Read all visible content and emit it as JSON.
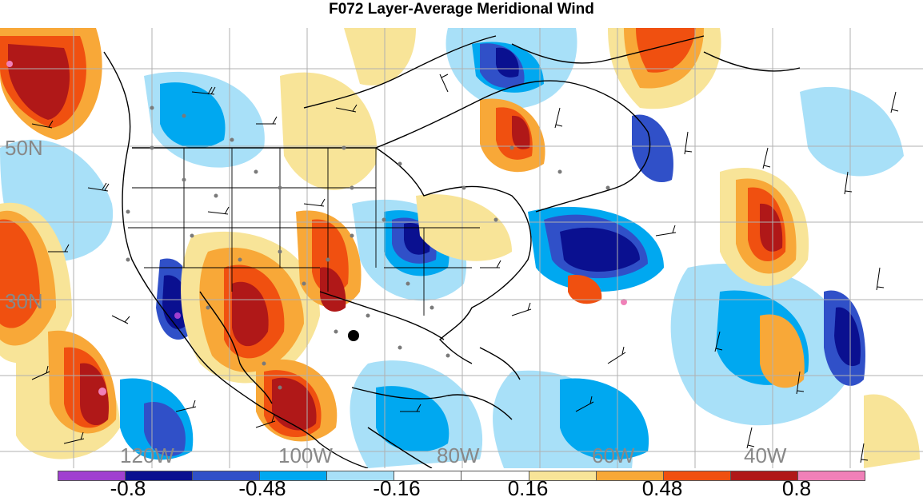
{
  "title": "F072 Layer-Average Meridional Wind",
  "lat_labels": [
    "50N",
    "30N"
  ],
  "lon_labels": [
    "120W",
    "100W",
    "80W",
    "60W",
    "40W"
  ],
  "colorbar": {
    "labels": [
      "-0.8",
      "-0.48",
      "-0.16",
      "0.16",
      "0.48",
      "0.8"
    ],
    "colors": [
      "#a040d0",
      "#0a1090",
      "#3050c8",
      "#00a8f0",
      "#a8e0f8",
      "#ffffff",
      "#ffffff",
      "#f8e498",
      "#f8a838",
      "#f05010",
      "#b01818",
      "#f080b8"
    ]
  },
  "marker": {
    "name": "black dot"
  }
}
